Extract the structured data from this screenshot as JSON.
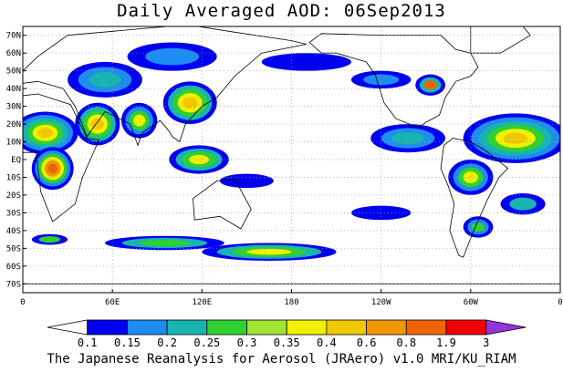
{
  "title": "Daily Averaged AOD: 06Sep2013",
  "footer": "The Japanese Reanalysis for Aerosol (JRAero) v1.0 MRI/KU_RIAM",
  "map": {
    "lat_labels": [
      "70N",
      "60N",
      "50N",
      "40N",
      "30N",
      "20N",
      "10N",
      "EQ",
      "10S",
      "20S",
      "30S",
      "40S",
      "50S",
      "60S",
      "70S"
    ],
    "lon_labels": [
      "0",
      "60E",
      "120E",
      "180",
      "120W",
      "60W",
      "0"
    ],
    "ocean_color": "#ffffff",
    "grid_style": "dotted",
    "aod_regions": [
      {
        "name": "north-africa-sahara",
        "level": 0.6
      },
      {
        "name": "central-africa",
        "level": 0.8
      },
      {
        "name": "arabian-peninsula",
        "level": 0.4
      },
      {
        "name": "east-asia",
        "level": 0.6
      },
      {
        "name": "maritime-continent",
        "level": 0.4
      },
      {
        "name": "southern-ocean",
        "level": 0.3
      },
      {
        "name": "tropical-atlantic",
        "level": 0.6
      },
      {
        "name": "north-america-east",
        "level": 1.9
      }
    ]
  },
  "colorbar": {
    "labels": [
      "0.1",
      "0.15",
      "0.2",
      "0.25",
      "0.3",
      "0.35",
      "0.4",
      "0.6",
      "0.8",
      "1.9",
      "3"
    ],
    "colors": [
      "#ffffff",
      "#0000f0",
      "#1e8cf0",
      "#18b4b0",
      "#30d030",
      "#a0e632",
      "#f0f000",
      "#f0c800",
      "#f09600",
      "#f06400",
      "#f00000",
      "#9632dc"
    ]
  }
}
